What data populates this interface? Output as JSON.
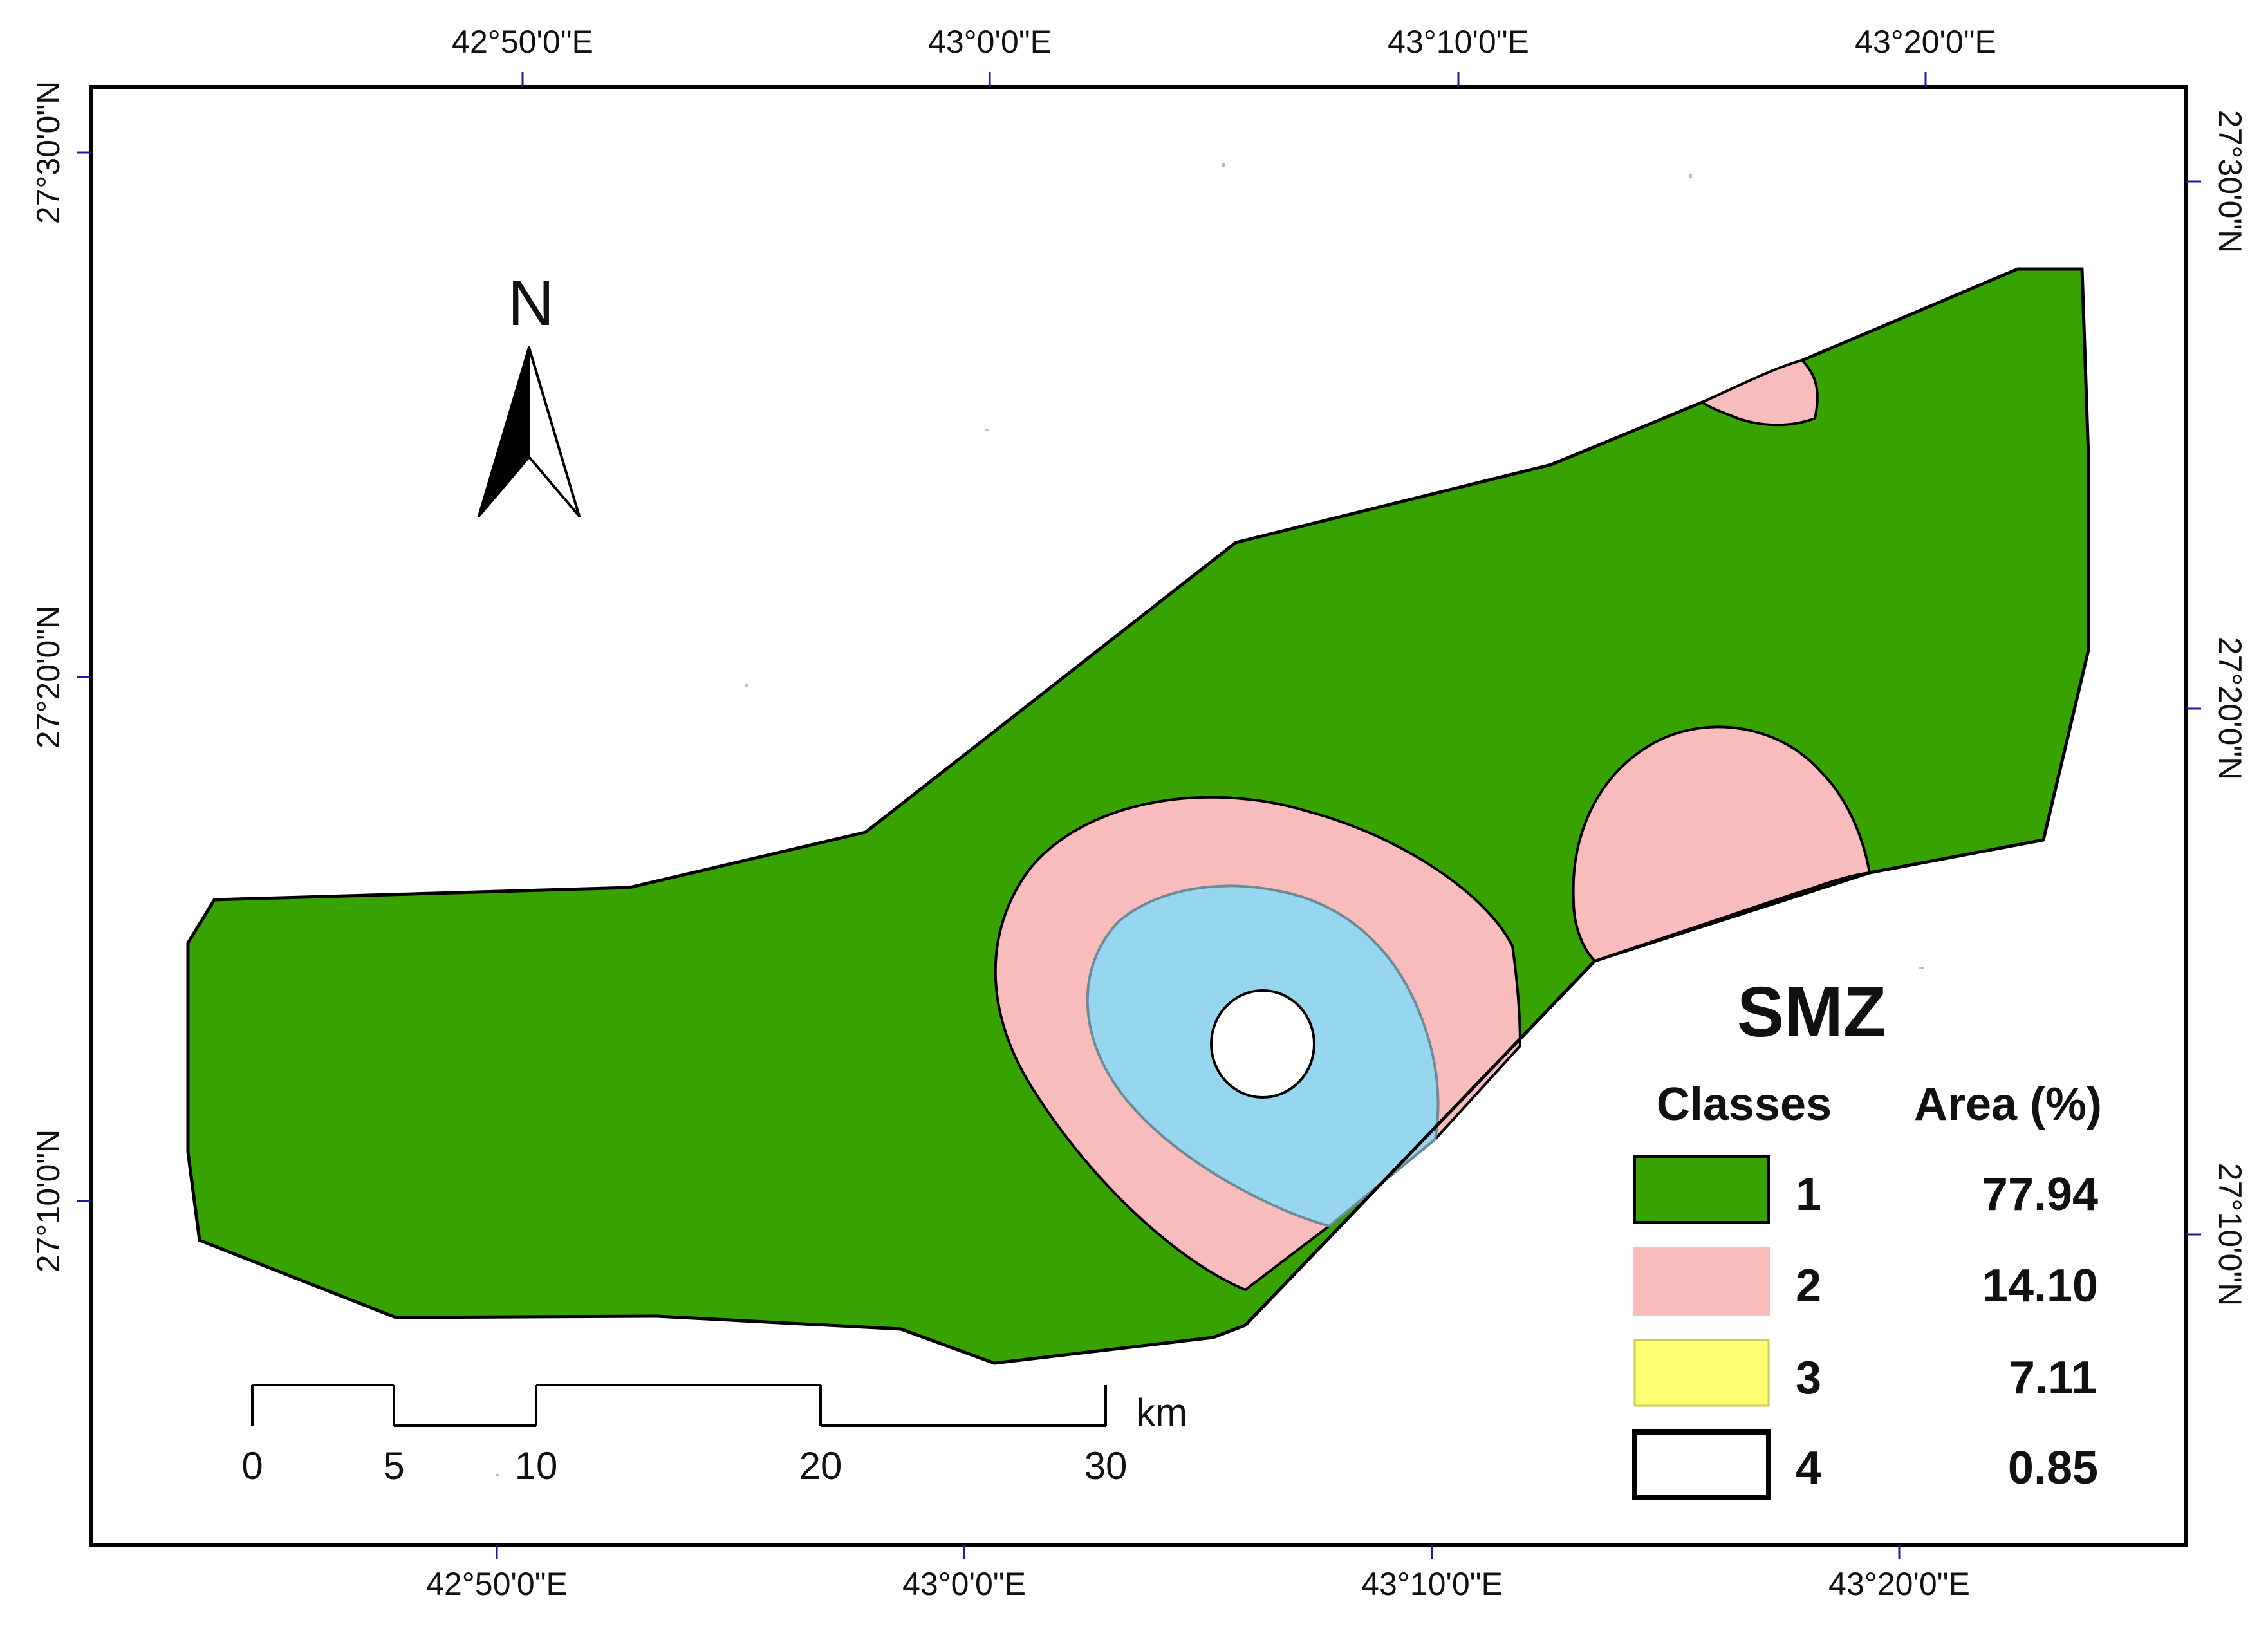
{
  "map": {
    "top_lon_labels": [
      "42°50'0\"E",
      "43°0'0\"E",
      "43°10'0\"E",
      "43°20'0\"E"
    ],
    "bottom_lon_labels": [
      "42°50'0\"E",
      "43°0'0\"E",
      "43°10'0\"E",
      "43°20'0\"E"
    ],
    "left_lat_labels": [
      "27°30'0\"N",
      "27°20'0\"N",
      "27°10'0\"N"
    ],
    "right_lat_labels": [
      "27°30'0\"N",
      "27°20'0\"N",
      "27°10'0\"N"
    ],
    "north_arrow": {
      "label": "N",
      "icon": "north-arrow-icon"
    },
    "scale_bar": {
      "unit": "km",
      "ticks": [
        "0",
        "5",
        "10",
        "20",
        "30"
      ]
    },
    "colors": {
      "class1": "#38a300",
      "class2": "#f9bcbc",
      "class3_legend": "#ffff73",
      "class3_map": "#96d6ee",
      "class4": "#ffffff",
      "outline": "#000000"
    }
  },
  "legend": {
    "title": "SMZ",
    "classes_header": "Classes",
    "area_header": "Area (%)",
    "items": [
      {
        "class": "1",
        "area": "77.94",
        "color": "#38a300"
      },
      {
        "class": "2",
        "area": "14.10",
        "color": "#f9bcbc"
      },
      {
        "class": "3",
        "area": "7.11",
        "color": "#ffff73"
      },
      {
        "class": "4",
        "area": "0.85",
        "color": "#ffffff"
      }
    ]
  }
}
